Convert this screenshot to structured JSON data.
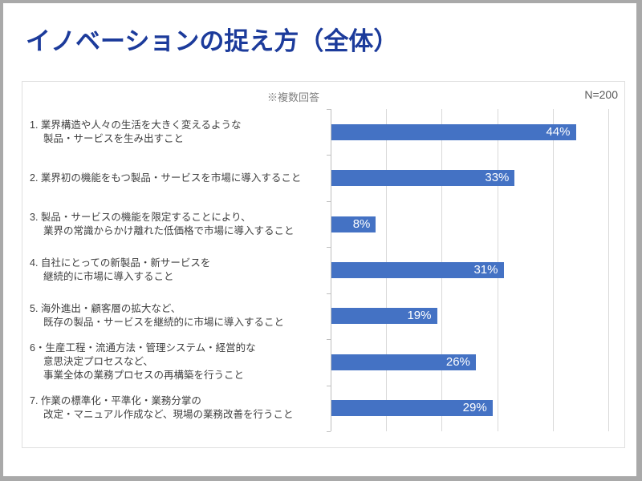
{
  "slide": {
    "title": "イノベーションの捉え方（全体）"
  },
  "chart": {
    "note": "※複数回答",
    "sample_size": "N=200"
  },
  "colors": {
    "title": "#1C3B9B",
    "bar": "#4472C4",
    "bar_label": "#FFFFFF",
    "category_text": "#3F3F3F",
    "note_text": "#808080",
    "sample_size_text": "#595959",
    "gridline": "#D9D9D9",
    "axis_line": "#BFBFBF",
    "chart_border": "#DFDFDF",
    "frame_border": "#A9A9A9"
  },
  "chart_data": {
    "type": "bar",
    "orientation": "horizontal",
    "title": "イノベーションの捉え方（全体）",
    "note": "※複数回答",
    "n_label": "N=200",
    "categories": [
      {
        "lines": [
          "1. 業界構造や人々の生活を大きく変えるような",
          "製品・サービスを生み出すこと"
        ]
      },
      {
        "lines": [
          "2. 業界初の機能をもつ製品・サービスを市場に導入すること"
        ]
      },
      {
        "lines": [
          "3. 製品・サービスの機能を限定することにより、",
          "業界の常識からかけ離れた低価格で市場に導入すること"
        ]
      },
      {
        "lines": [
          "4. 自社にとっての新製品・新サービスを",
          "継続的に市場に導入すること"
        ]
      },
      {
        "lines": [
          "5. 海外進出・顧客層の拡大など、",
          "既存の製品・サービスを継続的に市場に導入すること"
        ]
      },
      {
        "lines": [
          "6・生産工程・流通方法・管理システム・経営的な",
          "意思決定プロセスなど、",
          "事業全体の業務プロセスの再構築を行うこと"
        ]
      },
      {
        "lines": [
          "7. 作業の標準化・平準化・業務分掌の",
          "改定・マニュアル作成など、現場の業務改善を行うこと"
        ]
      }
    ],
    "values": [
      44,
      33,
      8,
      31,
      19,
      26,
      29
    ],
    "value_labels": [
      "44%",
      "33%",
      "8%",
      "31%",
      "19%",
      "26%",
      "29%"
    ],
    "xlabel": "",
    "ylabel": "",
    "xlim": [
      0,
      50
    ],
    "gridlines_percent": [
      0,
      10,
      20,
      30,
      40,
      50
    ],
    "grid": true,
    "value_axis_labels_shown": false,
    "legend": false,
    "bar_color": "#4472C4",
    "data_label_position": "inside-end",
    "data_label_color": "#FFFFFF"
  }
}
